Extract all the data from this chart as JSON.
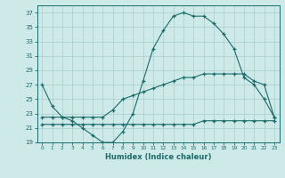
{
  "xlabel": "Humidex (Indice chaleur)",
  "bg_color": "#ceeae8",
  "line_color": "#1a6b6b",
  "grid_color": "#a8cece",
  "ylim": [
    19,
    38
  ],
  "xlim": [
    -0.5,
    23.5
  ],
  "yticks": [
    19,
    21,
    23,
    25,
    27,
    29,
    31,
    33,
    35,
    37
  ],
  "xticks": [
    0,
    1,
    2,
    3,
    4,
    5,
    6,
    7,
    8,
    9,
    10,
    11,
    12,
    13,
    14,
    15,
    16,
    17,
    18,
    19,
    20,
    21,
    22,
    23
  ],
  "series1_x": [
    0,
    1,
    2,
    3,
    4,
    5,
    6,
    7,
    8,
    9,
    10,
    11,
    12,
    13,
    14,
    15,
    16,
    17,
    18,
    19,
    20,
    21,
    22,
    23
  ],
  "series1_y": [
    27,
    24,
    22.5,
    22,
    21,
    20,
    19,
    19,
    20.5,
    23,
    27.5,
    32,
    34.5,
    36.5,
    37,
    36.5,
    36.5,
    35.5,
    34,
    32,
    28,
    27,
    25,
    22.5
  ],
  "series2_x": [
    0,
    1,
    2,
    3,
    4,
    5,
    6,
    7,
    8,
    9,
    10,
    11,
    12,
    13,
    14,
    15,
    16,
    17,
    18,
    19,
    20,
    21,
    22,
    23
  ],
  "series2_y": [
    21.5,
    21.5,
    21.5,
    21.5,
    21.5,
    21.5,
    21.5,
    21.5,
    21.5,
    21.5,
    21.5,
    21.5,
    21.5,
    21.5,
    21.5,
    21.5,
    22,
    22,
    22,
    22,
    22,
    22,
    22,
    22
  ],
  "series3_x": [
    0,
    1,
    2,
    3,
    4,
    5,
    6,
    7,
    8,
    9,
    10,
    11,
    12,
    13,
    14,
    15,
    16,
    17,
    18,
    19,
    20,
    21,
    22,
    23
  ],
  "series3_y": [
    22.5,
    22.5,
    22.5,
    22.5,
    22.5,
    22.5,
    22.5,
    23.5,
    25,
    25.5,
    26,
    26.5,
    27,
    27.5,
    28,
    28,
    28.5,
    28.5,
    28.5,
    28.5,
    28.5,
    27.5,
    27,
    22.5
  ]
}
